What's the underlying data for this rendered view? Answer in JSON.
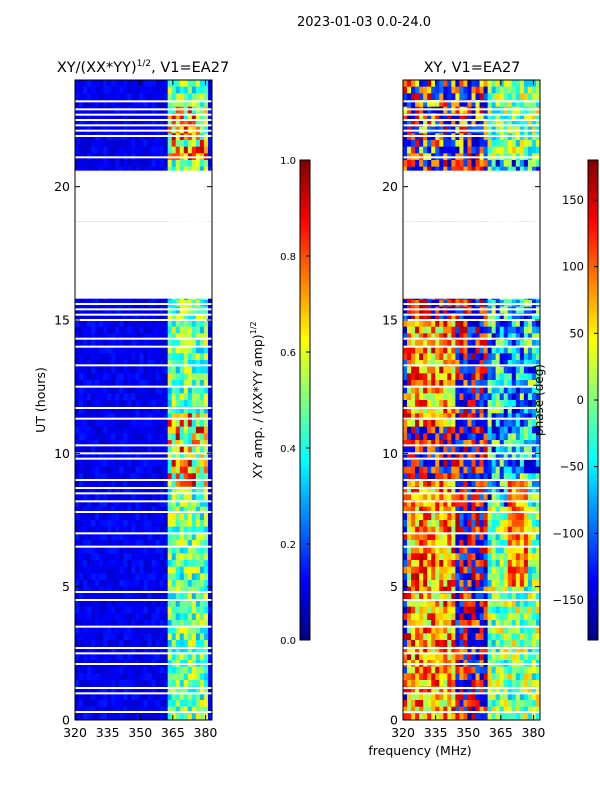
{
  "suptitle": "2023-01-03 0.0-24.0",
  "chart_data": [
    {
      "type": "heatmap",
      "title": "XY/(XX*YY)^{1/2}, V1=EA27",
      "title_main": "XY/(XX*YY)",
      "title_sup": "1/2",
      "title_tail": ", V1=EA27",
      "xlabel": "",
      "ylabel": "UT (hours)",
      "xlim": [
        320,
        383
      ],
      "ylim": [
        0,
        24
      ],
      "xticks": [
        320,
        335,
        350,
        365,
        380
      ],
      "yticks": [
        0,
        5,
        10,
        15,
        20
      ],
      "colorbar": {
        "label": "XY amp. / (XX*YY amp)^{1/2}",
        "label_main": "XY amp. / (XX*YY amp)",
        "label_sup": "1/2",
        "range": [
          0.0,
          1.0
        ],
        "ticks": [
          0.0,
          0.2,
          0.4,
          0.6,
          0.8,
          1.0
        ],
        "tick_labels": [
          "0.0",
          "0.2",
          "0.4",
          "0.6",
          "0.8",
          "1.0"
        ]
      },
      "blank_time_ranges_hours": [
        [
          18.7,
          19.2
        ],
        [
          19.2,
          20.6
        ],
        [
          15.8,
          18.7
        ]
      ],
      "bright_band_mhz": [
        363,
        381
      ],
      "flagged_rows_hours": [
        0.3,
        1.0,
        1.2,
        2.1,
        2.5,
        2.7,
        3.5,
        4.5,
        4.8,
        6.5,
        7.0,
        7.8,
        8.2,
        8.5,
        8.7,
        9.0,
        9.8,
        10.0,
        10.3,
        11.3,
        11.7,
        12.5,
        13.3,
        14.0,
        14.3,
        15.0,
        15.2,
        15.4,
        15.6,
        18.8,
        19.0,
        21.1,
        21.9,
        22.1,
        22.3,
        22.5,
        22.7,
        22.9,
        23.2
      ]
    },
    {
      "type": "heatmap",
      "title": "XY, V1=EA27",
      "xlabel": "frequency (MHz)",
      "ylabel": "",
      "xlim": [
        320,
        383
      ],
      "ylim": [
        0,
        24
      ],
      "xticks": [
        320,
        335,
        350,
        365,
        380
      ],
      "yticks": [
        0,
        5,
        10,
        15,
        20
      ],
      "colorbar": {
        "label": "phase (deg)",
        "range": [
          -180,
          180
        ],
        "ticks": [
          150,
          100,
          50,
          0,
          -50,
          -100,
          -150
        ],
        "tick_labels": [
          "150",
          "100",
          "50",
          "0",
          "−50",
          "−100",
          "−150"
        ]
      },
      "blank_time_ranges_hours": [
        [
          18.7,
          19.2
        ],
        [
          19.2,
          20.6
        ],
        [
          15.8,
          18.7
        ]
      ],
      "flagged_rows_hours": [
        0.3,
        1.0,
        1.2,
        2.1,
        2.5,
        2.7,
        3.5,
        4.5,
        4.8,
        6.5,
        7.0,
        7.8,
        8.2,
        8.5,
        8.7,
        9.0,
        9.8,
        10.0,
        10.3,
        11.3,
        11.7,
        12.5,
        13.3,
        14.0,
        14.3,
        15.0,
        15.2,
        15.4,
        15.6,
        18.8,
        19.0,
        21.1,
        21.9,
        22.1,
        22.3,
        22.5,
        22.7,
        22.9,
        23.2
      ]
    }
  ]
}
